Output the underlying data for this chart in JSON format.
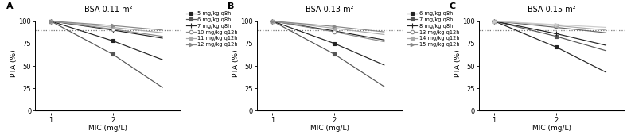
{
  "panels": [
    {
      "title": "BSA 0.11 m²",
      "label": "A",
      "series": [
        {
          "label": "5 mg/kg q8h",
          "x": [
            1,
            2,
            2.8
          ],
          "y": [
            100,
            78,
            57
          ],
          "marker": "s",
          "color": "#222222",
          "mfc": "#222222",
          "ms": 3.2
        },
        {
          "label": "6 mg/kg q8h",
          "x": [
            1,
            2,
            2.8
          ],
          "y": [
            100,
            63,
            26
          ],
          "marker": "s",
          "color": "#555555",
          "mfc": "#555555",
          "ms": 3.2
        },
        {
          "label": "7 mg/kg q8h",
          "x": [
            1,
            2,
            2.8
          ],
          "y": [
            100,
            90,
            81
          ],
          "marker": "+",
          "color": "#222222",
          "mfc": "#222222",
          "ms": 4.5
        },
        {
          "label": "10 mg/kg q12h",
          "x": [
            1,
            2,
            2.8
          ],
          "y": [
            100,
            91,
            83
          ],
          "marker": "o",
          "color": "#888888",
          "mfc": "white",
          "ms": 3.2
        },
        {
          "label": "11 mg/kg q12h",
          "x": [
            1,
            2,
            2.8
          ],
          "y": [
            100,
            93,
            87
          ],
          "marker": "s",
          "color": "#aaaaaa",
          "mfc": "#aaaaaa",
          "ms": 3.2
        },
        {
          "label": "12 mg/kg q12h",
          "x": [
            1,
            2,
            2.8
          ],
          "y": [
            100,
            95,
            90
          ],
          "marker": ">",
          "color": "#888888",
          "mfc": "#888888",
          "ms": 3.2
        }
      ]
    },
    {
      "title": "BSA 0.13 m²",
      "label": "B",
      "series": [
        {
          "label": "6 mg/kg q8h",
          "x": [
            1,
            2,
            2.8
          ],
          "y": [
            100,
            75,
            51
          ],
          "marker": "s",
          "color": "#222222",
          "mfc": "#222222",
          "ms": 3.2
        },
        {
          "label": "7 mg/kg q8h",
          "x": [
            1,
            2,
            2.8
          ],
          "y": [
            100,
            63,
            27
          ],
          "marker": "s",
          "color": "#555555",
          "mfc": "#555555",
          "ms": 3.2
        },
        {
          "label": "8 mg/kg q8h",
          "x": [
            1,
            2,
            2.8
          ],
          "y": [
            100,
            89,
            79
          ],
          "marker": "+",
          "color": "#222222",
          "mfc": "#222222",
          "ms": 4.5
        },
        {
          "label": "13 mg/kg q12h",
          "x": [
            1,
            2,
            2.8
          ],
          "y": [
            100,
            88,
            77
          ],
          "marker": "o",
          "color": "#888888",
          "mfc": "white",
          "ms": 3.2
        },
        {
          "label": "14 mg/kg q12h",
          "x": [
            1,
            2,
            2.8
          ],
          "y": [
            100,
            92,
            85
          ],
          "marker": "s",
          "color": "#aaaaaa",
          "mfc": "#aaaaaa",
          "ms": 3.2
        },
        {
          "label": "15 mg/kg q12h",
          "x": [
            1,
            2,
            2.8
          ],
          "y": [
            100,
            94,
            88
          ],
          "marker": ">",
          "color": "#888888",
          "mfc": "#888888",
          "ms": 3.2
        }
      ]
    },
    {
      "title": "BSA 0.15 m²",
      "label": "C",
      "series": [
        {
          "label": "8 mg/kg q8h",
          "x": [
            1,
            2,
            2.8
          ],
          "y": [
            100,
            71,
            43
          ],
          "marker": "s",
          "color": "#222222",
          "mfc": "#222222",
          "ms": 3.2
        },
        {
          "label": "9 mg/kg q8h",
          "x": [
            1,
            2,
            2.8
          ],
          "y": [
            100,
            83,
            67
          ],
          "marker": "s",
          "color": "#555555",
          "mfc": "#555555",
          "ms": 3.2
        },
        {
          "label": "10 mg/kg q8h",
          "x": [
            1,
            2,
            2.8
          ],
          "y": [
            100,
            86,
            73
          ],
          "marker": "+",
          "color": "#222222",
          "mfc": "#222222",
          "ms": 4.5
        },
        {
          "label": "17 mg/kg q12h",
          "x": [
            1,
            2,
            2.8
          ],
          "y": [
            100,
            93,
            87
          ],
          "marker": ">",
          "color": "#666666",
          "mfc": "#666666",
          "ms": 3.2
        },
        {
          "label": "18 mg/kg q12h",
          "x": [
            1,
            2,
            2.8
          ],
          "y": [
            100,
            95,
            90
          ],
          "marker": "s",
          "color": "#aaaaaa",
          "mfc": "#aaaaaa",
          "ms": 3.2
        },
        {
          "label": "19 mg/kg q12h",
          "x": [
            1,
            2,
            2.8
          ],
          "y": [
            100,
            96,
            93
          ],
          "marker": ">",
          "color": "#cccccc",
          "mfc": "#cccccc",
          "ms": 3.2
        }
      ]
    }
  ],
  "dotted_y": 90,
  "ylim": [
    -2,
    108
  ],
  "yticks": [
    0,
    25,
    50,
    75,
    100
  ],
  "xlim": [
    0.75,
    3.1
  ],
  "xticks": [
    1,
    2
  ],
  "xlabel": "MIC (mg/L)",
  "ylabel": "PTA (%)",
  "bg_color": "#ffffff",
  "hline_y": 0,
  "hline_color": "#000000"
}
